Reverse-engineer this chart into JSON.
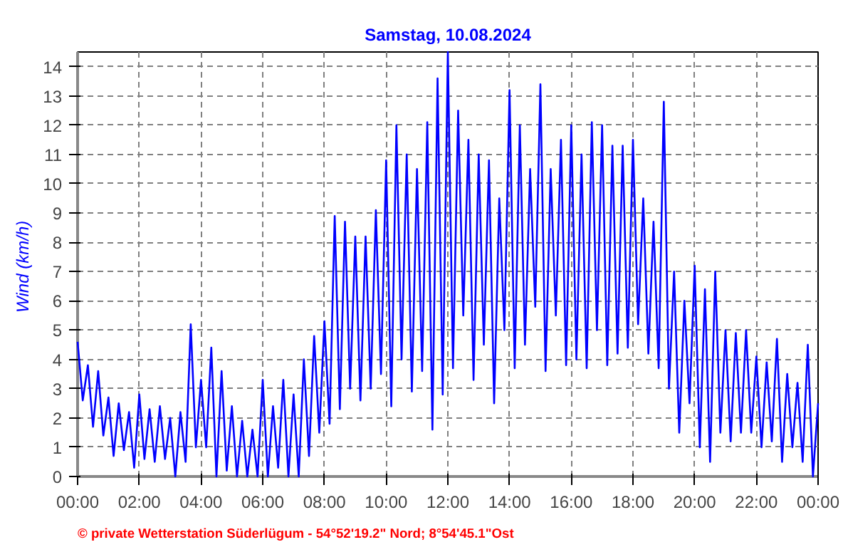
{
  "chart_data": {
    "type": "line",
    "title": "Samstag, 10.08.2024",
    "ylabel": "Wind  (km/h)",
    "x": [
      0,
      0.1667,
      0.3333,
      0.5,
      0.6667,
      0.8333,
      1,
      1.1667,
      1.3333,
      1.5,
      1.6667,
      1.8333,
      2,
      2.1667,
      2.3333,
      2.5,
      2.6667,
      2.8333,
      3,
      3.1667,
      3.3333,
      3.5,
      3.6667,
      3.8333,
      4,
      4.1667,
      4.3333,
      4.5,
      4.6667,
      4.8333,
      5,
      5.1667,
      5.3333,
      5.5,
      5.6667,
      5.8333,
      6,
      6.1667,
      6.3333,
      6.5,
      6.6667,
      6.8333,
      7,
      7.1667,
      7.3333,
      7.5,
      7.6667,
      7.8333,
      8,
      8.1667,
      8.3333,
      8.5,
      8.6667,
      8.8333,
      9,
      9.1667,
      9.3333,
      9.5,
      9.6667,
      9.8333,
      10,
      10.1667,
      10.3333,
      10.5,
      10.6667,
      10.8333,
      11,
      11.1667,
      11.3333,
      11.5,
      11.6667,
      11.8333,
      12,
      12.1667,
      12.3333,
      12.5,
      12.6667,
      12.8333,
      13,
      13.1667,
      13.3333,
      13.5,
      13.6667,
      13.8333,
      14,
      14.1667,
      14.3333,
      14.5,
      14.6667,
      14.8333,
      15,
      15.1667,
      15.3333,
      15.5,
      15.6667,
      15.8333,
      16,
      16.1667,
      16.3333,
      16.5,
      16.6667,
      16.8333,
      17,
      17.1667,
      17.3333,
      17.5,
      17.6667,
      17.8333,
      18,
      18.1667,
      18.3333,
      18.5,
      18.6667,
      18.8333,
      19,
      19.1667,
      19.3333,
      19.5,
      19.6667,
      19.8333,
      20,
      20.1667,
      20.3333,
      20.5,
      20.6667,
      20.8333,
      21,
      21.1667,
      21.3333,
      21.5,
      21.6667,
      21.8333,
      22,
      22.1667,
      22.3333,
      22.5,
      22.6667,
      22.8333,
      23,
      23.1667,
      23.3333,
      23.5,
      23.6667,
      23.8333,
      24
    ],
    "series": [
      {
        "color": "#0000ff",
        "values": [
          4.6,
          2.6,
          3.8,
          1.7,
          3.6,
          1.4,
          2.7,
          0.7,
          2.5,
          0.9,
          2.2,
          0.3,
          2.8,
          0.6,
          2.3,
          0.5,
          2.4,
          0.6,
          2.0,
          0.0,
          2.2,
          0.5,
          5.2,
          1.0,
          3.3,
          1.0,
          4.4,
          0.0,
          3.6,
          0.2,
          2.4,
          0.0,
          1.9,
          0.0,
          1.6,
          0.0,
          3.3,
          0.0,
          2.4,
          0.3,
          3.3,
          0.0,
          2.8,
          0.0,
          4.0,
          0.7,
          4.8,
          1.5,
          5.3,
          1.8,
          8.9,
          2.3,
          8.7,
          3.0,
          8.2,
          2.6,
          8.2,
          3.0,
          9.1,
          3.5,
          10.8,
          2.4,
          12.0,
          4.0,
          11.0,
          2.9,
          10.5,
          3.6,
          12.1,
          1.6,
          13.6,
          2.8,
          14.5,
          3.7,
          12.5,
          5.5,
          11.5,
          3.3,
          11.0,
          4.5,
          10.8,
          2.5,
          9.5,
          5.0,
          13.2,
          3.7,
          12.0,
          4.5,
          10.5,
          5.8,
          13.4,
          3.6,
          10.5,
          5.5,
          11.5,
          3.8,
          12.0,
          4.0,
          11.0,
          3.7,
          12.1,
          5.0,
          12.0,
          3.8,
          11.3,
          4.2,
          11.3,
          4.4,
          11.5,
          5.2,
          9.5,
          4.2,
          8.7,
          3.7,
          12.8,
          3.0,
          7.0,
          1.5,
          6.0,
          2.5,
          7.2,
          1.0,
          6.4,
          0.5,
          7.0,
          1.5,
          5.0,
          1.2,
          4.9,
          1.5,
          5.0,
          1.5,
          4.1,
          1.0,
          3.9,
          1.2,
          4.7,
          0.5,
          3.5,
          1.0,
          3.2,
          0.5,
          4.5,
          0.0,
          2.5
        ]
      }
    ],
    "xlim": [
      0,
      24
    ],
    "ylim": [
      0,
      14.5
    ],
    "xticks": [
      {
        "value": 0,
        "label": "00:00"
      },
      {
        "value": 2,
        "label": "02:00"
      },
      {
        "value": 4,
        "label": "04:00"
      },
      {
        "value": 6,
        "label": "06:00"
      },
      {
        "value": 8,
        "label": "08:00"
      },
      {
        "value": 10,
        "label": "10:00"
      },
      {
        "value": 12,
        "label": "12:00"
      },
      {
        "value": 14,
        "label": "14:00"
      },
      {
        "value": 16,
        "label": "16:00"
      },
      {
        "value": 18,
        "label": "18:00"
      },
      {
        "value": 20,
        "label": "20:00"
      },
      {
        "value": 22,
        "label": "22:00"
      },
      {
        "value": 24,
        "label": "00:00"
      }
    ],
    "yticks": [
      0,
      1,
      2,
      3,
      4,
      5,
      6,
      7,
      8,
      9,
      10,
      11,
      12,
      13,
      14
    ],
    "grid": true,
    "line_style": "solid",
    "annotations": [
      "© private Wetterstation Süderlügum  -  54°52'19.2\" Nord; 8°54'45.1\"Ost"
    ]
  }
}
